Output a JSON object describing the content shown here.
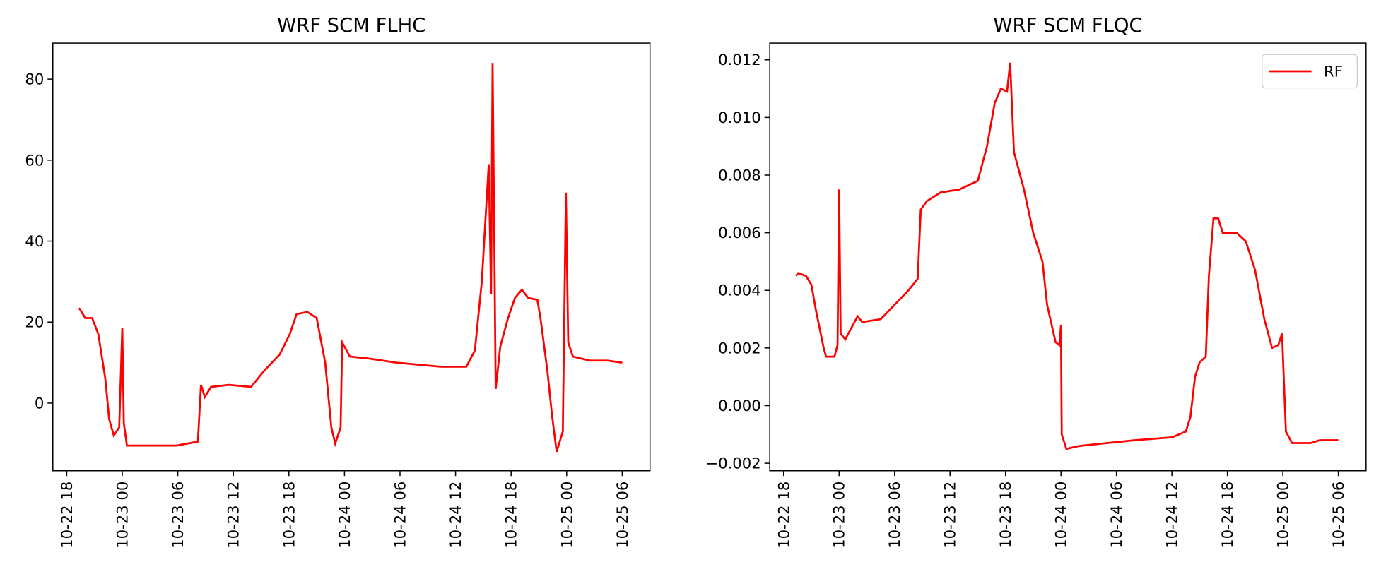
{
  "chart_data": [
    {
      "type": "line",
      "title": "WRF SCM FLHC",
      "x": [
        "10-22 19:20",
        "10-22 20:00",
        "10-22 20:45",
        "10-22 21:25",
        "10-22 22:10",
        "10-22 22:35",
        "10-22 23:05",
        "10-22 23:40",
        "10-23 00:00",
        "10-23 00:10",
        "10-23 00:30",
        "10-23 02:00",
        "10-23 05:50",
        "10-23 08:10",
        "10-23 08:30",
        "10-23 08:55",
        "10-23 09:35",
        "10-23 11:30",
        "10-23 13:55",
        "10-23 15:20",
        "10-23 17:00",
        "10-23 18:05",
        "10-23 18:50",
        "10-23 20:00",
        "10-23 21:00",
        "10-23 21:55",
        "10-23 22:35",
        "10-23 23:00",
        "10-23 23:35",
        "10-23 23:45",
        "10-24 00:35",
        "10-24 02:40",
        "10-24 05:35",
        "10-24 10:20",
        "10-24 13:10",
        "10-24 14:05",
        "10-24 14:50",
        "10-24 15:35",
        "10-24 15:50",
        "10-24 16:00",
        "10-24 16:20",
        "10-24 16:50",
        "10-24 17:40",
        "10-24 18:25",
        "10-24 19:10",
        "10-24 19:50",
        "10-24 20:50",
        "10-24 21:10",
        "10-24 21:55",
        "10-24 22:25",
        "10-24 22:55",
        "10-24 23:35",
        "10-24 23:55",
        "10-25 00:10",
        "10-25 00:40",
        "10-25 02:30",
        "10-25 04:25",
        "10-25 06:00"
      ],
      "series": [
        {
          "color": "#ff0000",
          "values": [
            23.5,
            21,
            21,
            17,
            6,
            -4,
            -8,
            -6,
            18.5,
            -5,
            -10.5,
            -10.5,
            -10.5,
            -9.5,
            4.5,
            1.5,
            4,
            4.5,
            4,
            8,
            12,
            17,
            22,
            22.5,
            21,
            10,
            -6,
            -10,
            -6,
            15,
            11.5,
            11,
            10,
            9,
            9,
            13,
            30,
            59,
            27,
            84,
            3.5,
            14,
            21,
            26,
            28,
            26,
            25.5,
            21,
            8,
            -3,
            -12,
            -7,
            52,
            15,
            11.5,
            10.5,
            10.5,
            10
          ]
        }
      ],
      "xlim": [
        "10-22 16:30",
        "10-25 09:00"
      ],
      "xticks": [
        "10-22 18",
        "10-23 00",
        "10-23 06",
        "10-23 12",
        "10-23 18",
        "10-24 00",
        "10-24 06",
        "10-24 12",
        "10-24 18",
        "10-25 00",
        "10-25 06"
      ],
      "ylim": [
        -16.7,
        88.9
      ],
      "yticks": [
        0,
        20,
        40,
        60,
        80
      ]
    },
    {
      "type": "line",
      "title": "WRF SCM FLQC",
      "x": [
        "10-22 19:20",
        "10-22 19:35",
        "10-22 20:25",
        "10-22 21:00",
        "10-22 21:30",
        "10-22 22:20",
        "10-22 22:35",
        "10-22 23:30",
        "10-22 23:50",
        "10-23 00:00",
        "10-23 00:10",
        "10-23 00:40",
        "10-23 02:00",
        "10-23 02:30",
        "10-23 04:30",
        "10-23 06:00",
        "10-23 07:30",
        "10-23 08:30",
        "10-23 08:50",
        "10-23 09:30",
        "10-23 11:00",
        "10-23 13:00",
        "10-23 15:00",
        "10-23 16:00",
        "10-23 16:50",
        "10-23 17:30",
        "10-23 18:10",
        "10-23 18:30",
        "10-23 18:55",
        "10-23 20:00",
        "10-23 21:00",
        "10-23 22:00",
        "10-23 22:30",
        "10-23 23:25",
        "10-23 23:50",
        "10-24 00:00",
        "10-24 00:05",
        "10-24 00:35",
        "10-24 02:00",
        "10-24 05:00",
        "10-24 08:00",
        "10-24 12:00",
        "10-24 13:30",
        "10-24 14:00",
        "10-24 14:30",
        "10-24 15:00",
        "10-24 15:40",
        "10-24 16:00",
        "10-24 16:30",
        "10-24 17:00",
        "10-24 17:30",
        "10-24 19:00",
        "10-24 20:00",
        "10-24 21:00",
        "10-24 22:00",
        "10-24 22:50",
        "10-24 23:30",
        "10-24 23:55",
        "10-25 00:05",
        "10-25 00:20",
        "10-25 01:00",
        "10-25 03:00",
        "10-25 04:00",
        "10-25 06:00"
      ],
      "series": [
        {
          "name": "RF",
          "color": "#ff0000",
          "values": [
            0.0045,
            0.0046,
            0.0045,
            0.0042,
            0.0033,
            0.002,
            0.0017,
            0.0017,
            0.0021,
            0.0075,
            0.0025,
            0.0023,
            0.0031,
            0.0029,
            0.003,
            0.0035,
            0.004,
            0.0044,
            0.0068,
            0.0071,
            0.0074,
            0.0075,
            0.0078,
            0.009,
            0.0105,
            0.011,
            0.0109,
            0.0119,
            0.0088,
            0.0075,
            0.006,
            0.005,
            0.0035,
            0.0022,
            0.0021,
            0.0028,
            -0.001,
            -0.0015,
            -0.0014,
            -0.0013,
            -0.0012,
            -0.0011,
            -0.0009,
            -0.0004,
            0.001,
            0.0015,
            0.0017,
            0.0045,
            0.0065,
            0.0065,
            0.006,
            0.006,
            0.0057,
            0.0047,
            0.003,
            0.002,
            0.0021,
            0.0025,
            0.0011,
            -0.0009,
            -0.0013,
            -0.0013,
            -0.0012,
            -0.0012
          ]
        }
      ],
      "xlim": [
        "10-22 16:30",
        "10-25 09:00"
      ],
      "xticks": [
        "10-22 18",
        "10-23 00",
        "10-23 06",
        "10-23 12",
        "10-23 18",
        "10-24 00",
        "10-24 06",
        "10-24 12",
        "10-24 18",
        "10-25 00",
        "10-25 06"
      ],
      "ylim": [
        -0.00226,
        0.01258
      ],
      "yticks": [
        {
          "value": -0.002,
          "label": "−0.002"
        },
        {
          "value": 0,
          "label": "0.000"
        },
        {
          "value": 0.002,
          "label": "0.002"
        },
        {
          "value": 0.004,
          "label": "0.004"
        },
        {
          "value": 0.006,
          "label": "0.006"
        },
        {
          "value": 0.008,
          "label": "0.008"
        },
        {
          "value": 0.01,
          "label": "0.010"
        },
        {
          "value": 0.012,
          "label": "0.012"
        }
      ],
      "legend": "upper right"
    }
  ]
}
